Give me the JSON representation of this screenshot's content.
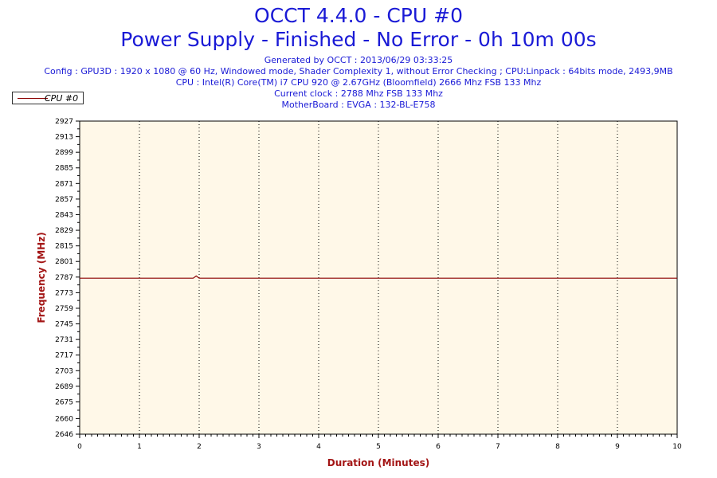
{
  "header": {
    "title": "OCCT 4.4.0 - CPU #0",
    "subtitle": "Power Supply - Finished - No Error - 0h 10m 00s",
    "info_lines": [
      "Generated by OCCT : 2013/06/29 03:33:25",
      "Config : GPU3D : 1920 x 1080 @ 60 Hz, Windowed mode, Shader Complexity 1, without Error Checking ; CPU:Linpack : 64bits mode, 2493,9MB",
      "CPU : Intel(R) Core(TM) i7 CPU 920 @ 2.67GHz (Bloomfield) 2666 Mhz FSB 133 Mhz",
      "Current clock : 2788 Mhz FSB 133 Mhz",
      "MotherBoard : EVGA : 132-BL-E758"
    ]
  },
  "legend": {
    "label": "CPU #0"
  },
  "colors": {
    "plot_background": "#fff8e8",
    "series": "#8b0000",
    "title": "#1a1ad6",
    "axis_title": "#a31515"
  },
  "chart_data": {
    "type": "line",
    "title": "OCCT 4.4.0 - CPU #0",
    "xlabel": "Duration (Minutes)",
    "ylabel": "Frequency (MHz)",
    "xlim": [
      0,
      10
    ],
    "ylim": [
      2646,
      2927
    ],
    "xticks": [
      0,
      1,
      2,
      3,
      4,
      5,
      6,
      7,
      8,
      9,
      10
    ],
    "yticks": [
      2646,
      2660,
      2675,
      2689,
      2703,
      2717,
      2731,
      2745,
      2759,
      2773,
      2787,
      2801,
      2815,
      2829,
      2843,
      2857,
      2871,
      2885,
      2899,
      2913,
      2927
    ],
    "grid": "vertical dotted",
    "legend_position": "top-left",
    "series": [
      {
        "name": "CPU #0",
        "x": [
          0,
          1.9,
          1.95,
          2.0,
          10
        ],
        "y": [
          2786,
          2786,
          2788,
          2786,
          2786
        ]
      }
    ]
  }
}
